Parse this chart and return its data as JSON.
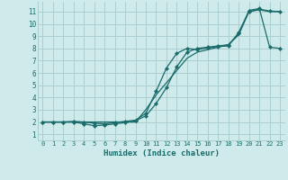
{
  "xlabel": "Humidex (Indice chaleur)",
  "xlim": [
    -0.5,
    23.5
  ],
  "ylim": [
    0.5,
    11.8
  ],
  "xticks": [
    0,
    1,
    2,
    3,
    4,
    5,
    6,
    7,
    8,
    9,
    10,
    11,
    12,
    13,
    14,
    15,
    16,
    17,
    18,
    19,
    20,
    21,
    22,
    23
  ],
  "yticks": [
    1,
    2,
    3,
    4,
    5,
    6,
    7,
    8,
    9,
    10,
    11
  ],
  "background_color": "#ceeaea",
  "grid_color": "#aacece",
  "line_color": "#1a6b6b",
  "line1_x": [
    0,
    1,
    2,
    3,
    4,
    5,
    6,
    7,
    8,
    9,
    10,
    11,
    12,
    13,
    14,
    15,
    16,
    17,
    18,
    19,
    20,
    21,
    22,
    23
  ],
  "line1_y": [
    2,
    2,
    2,
    2,
    1.85,
    1.7,
    1.75,
    1.85,
    1.95,
    2.1,
    2.5,
    3.5,
    4.8,
    6.5,
    7.7,
    8.0,
    8.1,
    8.2,
    8.3,
    9.2,
    11.1,
    11.25,
    8.1,
    8.0
  ],
  "line2_x": [
    0,
    1,
    2,
    3,
    4,
    5,
    6,
    7,
    8,
    9,
    10,
    11,
    12,
    13,
    14,
    15,
    16,
    17,
    18,
    19,
    20,
    21,
    22,
    23
  ],
  "line2_y": [
    2,
    2,
    2,
    2.05,
    2.0,
    1.9,
    1.85,
    1.95,
    2.05,
    2.15,
    2.7,
    4.5,
    6.4,
    7.6,
    8.0,
    7.9,
    8.05,
    8.15,
    8.2,
    9.3,
    11.0,
    11.2,
    11.05,
    11.0
  ],
  "line3_x": [
    0,
    1,
    2,
    3,
    4,
    5,
    6,
    7,
    8,
    9,
    10,
    11,
    12,
    13,
    14,
    15,
    16,
    17,
    18,
    19,
    20,
    21,
    22,
    23
  ],
  "line3_y": [
    2,
    2,
    2,
    2,
    2,
    2,
    2,
    2,
    2,
    2,
    3.0,
    4.2,
    5.2,
    6.2,
    7.2,
    7.7,
    7.9,
    8.1,
    8.3,
    9.1,
    11.0,
    11.15,
    11.0,
    11.0
  ]
}
